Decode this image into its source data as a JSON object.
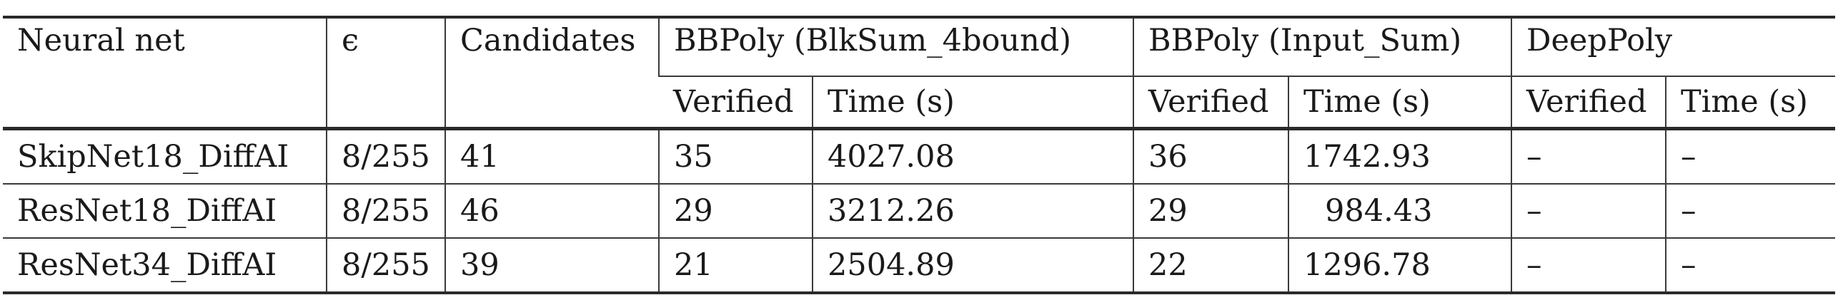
{
  "table": {
    "header_row1": {
      "neural_net": "Neural net",
      "epsilon": "ϵ",
      "candidates": "Candidates",
      "group_bbpoly_blksum": "BBPoly (BlkSum_4bound)",
      "group_bbpoly_input": "BBPoly (Input_Sum)",
      "group_deeppoly": "DeepPoly"
    },
    "header_row2": {
      "blksum_verified": "Verified",
      "blksum_time": "Time (s)",
      "input_verified": "Verified",
      "input_time": "Time (s)",
      "deeppoly_verified": "Verified",
      "deeppoly_time": "Time (s)"
    },
    "rows": [
      {
        "net": "SkipNet18_DiffAI",
        "epsilon": "8/255",
        "candidates": "41",
        "blksum_verified": "35",
        "blksum_time": "4027.08",
        "input_verified": "36",
        "input_time": "1742.93",
        "deeppoly_verified": "–",
        "deeppoly_time": "–"
      },
      {
        "net": "ResNet18_DiffAI",
        "epsilon": "8/255",
        "candidates": "46",
        "blksum_verified": "29",
        "blksum_time": "3212.26",
        "input_verified": "29",
        "input_time": "984.43",
        "deeppoly_verified": "–",
        "deeppoly_time": "–"
      },
      {
        "net": "ResNet34_DiffAI",
        "epsilon": "8/255",
        "candidates": "39",
        "blksum_verified": "21",
        "blksum_time": "2504.89",
        "input_verified": "22",
        "input_time": "1296.78",
        "deeppoly_verified": "–",
        "deeppoly_time": "–"
      }
    ]
  }
}
